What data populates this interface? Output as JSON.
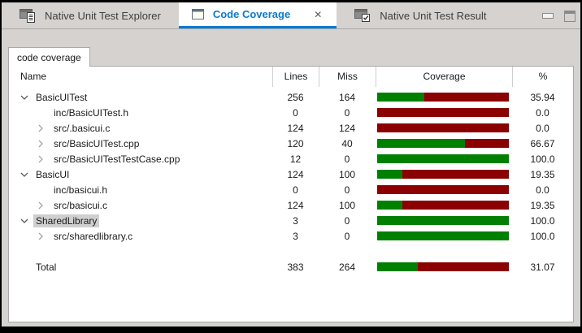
{
  "tabs": [
    {
      "label": "Native Unit Test Explorer"
    },
    {
      "label": "Code Coverage"
    },
    {
      "label": "Native Unit Test Result"
    }
  ],
  "icons": {
    "close": "✕"
  },
  "subtab": {
    "label": "code coverage"
  },
  "table": {
    "columns": [
      "Name",
      "Lines",
      "Miss",
      "Coverage",
      "%"
    ],
    "rows": [
      {
        "name": "BasicUITest",
        "level": 0,
        "chevron": "down",
        "lines": "256",
        "miss": "164",
        "pct": 35.94,
        "pct_label": "35.94"
      },
      {
        "name": "inc/BasicUITest.h",
        "level": 1,
        "chevron": "none",
        "lines": "0",
        "miss": "0",
        "pct": 0,
        "pct_label": "0.0"
      },
      {
        "name": "src/.basicui.c",
        "level": 1,
        "chevron": "right",
        "lines": "124",
        "miss": "124",
        "pct": 0,
        "pct_label": "0.0"
      },
      {
        "name": "src/BasicUITest.cpp",
        "level": 1,
        "chevron": "right",
        "lines": "120",
        "miss": "40",
        "pct": 66.67,
        "pct_label": "66.67"
      },
      {
        "name": "src/BasicUITestTestCase.cpp",
        "level": 1,
        "chevron": "right",
        "lines": "12",
        "miss": "0",
        "pct": 100,
        "pct_label": "100.0"
      },
      {
        "name": "BasicUI",
        "level": 0,
        "chevron": "down",
        "lines": "124",
        "miss": "100",
        "pct": 19.35,
        "pct_label": "19.35"
      },
      {
        "name": "inc/basicui.h",
        "level": 1,
        "chevron": "none",
        "lines": "0",
        "miss": "0",
        "pct": 0,
        "pct_label": "0.0"
      },
      {
        "name": "src/basicui.c",
        "level": 1,
        "chevron": "right",
        "lines": "124",
        "miss": "100",
        "pct": 19.35,
        "pct_label": "19.35"
      },
      {
        "name": "SharedLibrary",
        "level": 0,
        "chevron": "down",
        "lines": "3",
        "miss": "0",
        "pct": 100,
        "pct_label": "100.0",
        "selected": true
      },
      {
        "name": "src/sharedlibrary.c",
        "level": 1,
        "chevron": "right",
        "lines": "3",
        "miss": "0",
        "pct": 100,
        "pct_label": "100.0"
      },
      {
        "blank": true
      },
      {
        "name": "Total",
        "level": 0,
        "chevron": "none",
        "lines": "383",
        "miss": "264",
        "pct": 31.07,
        "pct_label": "31.07",
        "total": true
      }
    ]
  },
  "colors": {
    "covered": "#008000",
    "uncovered": "#8B0000",
    "accent": "#0A7AD1"
  }
}
